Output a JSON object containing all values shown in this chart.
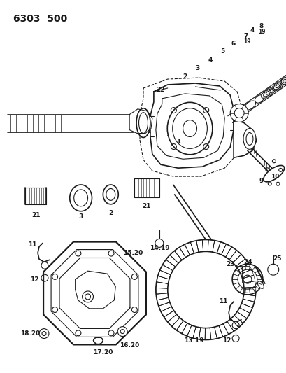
{
  "title": "6303 500",
  "bg_color": "#ffffff",
  "line_color": "#1a1a1a",
  "fig_width": 4.1,
  "fig_height": 5.33,
  "dpi": 100
}
